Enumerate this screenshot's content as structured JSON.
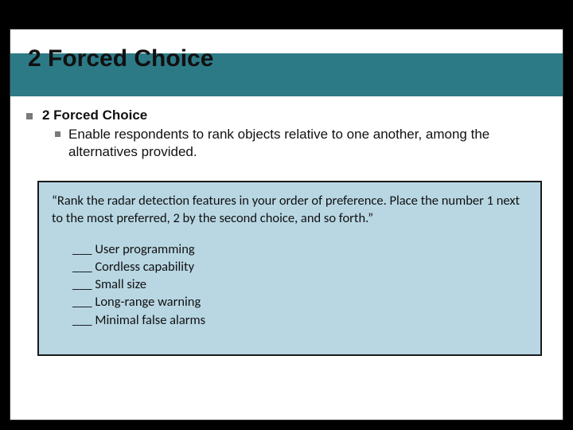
{
  "colors": {
    "page_bg": "#000000",
    "slide_bg": "#ffffff",
    "slide_border": "#333333",
    "title_band": "#2d7a87",
    "bullet_sq": "#7a7a7a",
    "example_bg": "#b8d7e3",
    "example_border": "#1a1a1a",
    "text": "#111111"
  },
  "title": "2 Forced Choice",
  "bullet1": "2 Forced Choice",
  "bullet2": "Enable respondents to rank objects relative to one another, among the alternatives provided.",
  "example": {
    "prompt": "“Rank the radar detection features in your order of preference. Place the number 1 next to the most preferred, 2 by the second choice, and so forth.”",
    "items": [
      "___ User programming",
      "___ Cordless capability",
      "___ Small size",
      "___ Long-range warning",
      "___ Minimal false alarms"
    ]
  }
}
